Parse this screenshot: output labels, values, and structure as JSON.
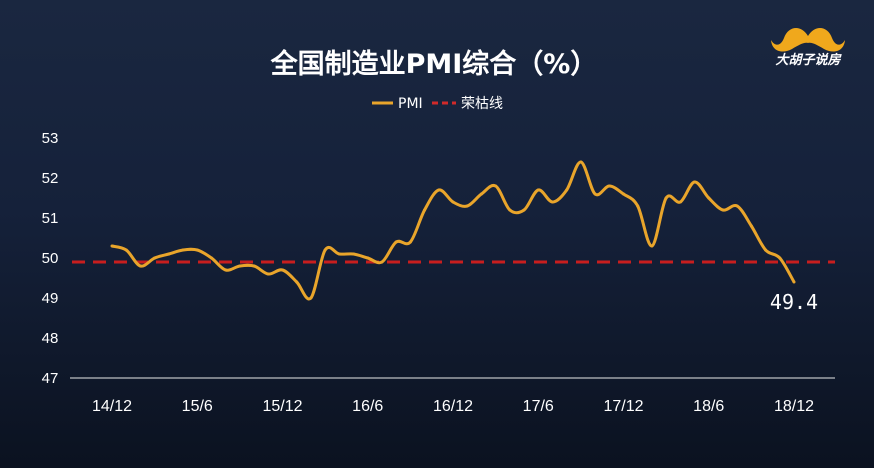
{
  "logo": {
    "text": "大胡子说房",
    "icon": "mustache-icon",
    "color": "#f0a81c"
  },
  "chart_data": {
    "type": "line",
    "title": "全国制造业PMI综合（%）",
    "xlabel": "",
    "ylabel": "",
    "ylim": [
      47,
      53
    ],
    "yticks": [
      47,
      48,
      49,
      50,
      51,
      52,
      53
    ],
    "xticks": [
      "14/12",
      "15/6",
      "15/12",
      "16/6",
      "16/12",
      "17/6",
      "17/12",
      "18/6",
      "18/12"
    ],
    "legend": {
      "placement": "top-center"
    },
    "grid": false,
    "series": [
      {
        "name": "PMI",
        "color": "#e9a52b",
        "categories": [
          "14/12",
          "15/1",
          "15/2",
          "15/3",
          "15/4",
          "15/5",
          "15/6",
          "15/7",
          "15/8",
          "15/9",
          "15/10",
          "15/11",
          "15/12",
          "16/1",
          "16/2",
          "16/3",
          "16/4",
          "16/5",
          "16/6",
          "16/7",
          "16/8",
          "16/9",
          "16/10",
          "16/11",
          "16/12",
          "17/1",
          "17/2",
          "17/3",
          "17/4",
          "17/5",
          "17/6",
          "17/7",
          "17/8",
          "17/9",
          "17/10",
          "17/11",
          "17/12",
          "18/1",
          "18/2",
          "18/3",
          "18/4",
          "18/5",
          "18/6",
          "18/7",
          "18/8",
          "18/9",
          "18/10",
          "18/11",
          "18/12"
        ],
        "values": [
          50.3,
          50.2,
          49.8,
          50.0,
          50.1,
          50.2,
          50.2,
          50.0,
          49.7,
          49.8,
          49.8,
          49.6,
          49.7,
          49.4,
          49.0,
          50.2,
          50.1,
          50.1,
          50.0,
          49.9,
          50.4,
          50.4,
          51.2,
          51.7,
          51.4,
          51.3,
          51.6,
          51.8,
          51.2,
          51.2,
          51.7,
          51.4,
          51.7,
          52.4,
          51.6,
          51.8,
          51.6,
          51.3,
          50.3,
          51.5,
          51.4,
          51.9,
          51.5,
          51.2,
          51.3,
          50.8,
          50.2,
          50.0,
          49.4
        ],
        "end_label": "49.4"
      },
      {
        "name": "荣枯线",
        "color": "#d12a2a",
        "style": "dashed",
        "value": 49.9
      }
    ]
  }
}
